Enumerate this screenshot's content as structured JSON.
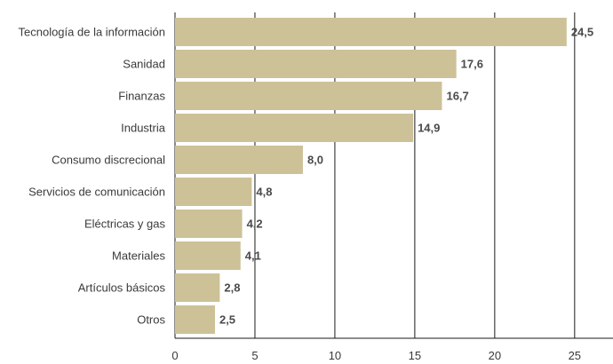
{
  "chart_data": {
    "type": "bar",
    "orientation": "horizontal",
    "categories": [
      "Tecnología de la información",
      "Sanidad",
      "Finanzas",
      "Industria",
      "Consumo discrecional",
      "Servicios de comunicación",
      "Eléctricas y gas",
      "Materiales",
      "Artículos básicos",
      "Otros"
    ],
    "values": [
      24.5,
      17.6,
      16.7,
      14.9,
      8.0,
      4.8,
      4.2,
      4.1,
      2.8,
      2.5
    ],
    "value_labels": [
      "24,5",
      "17,6",
      "16,7",
      "14,9",
      "8,0",
      "4,8",
      "4,2",
      "4,1",
      "2,8",
      "2,5"
    ],
    "x_ticks": [
      0,
      5,
      10,
      15,
      20,
      25
    ],
    "x_tick_labels": [
      "0",
      "5",
      "10",
      "15",
      "20",
      "25"
    ],
    "xlim": [
      0,
      27.4
    ],
    "grid": "vertical",
    "bar_color": "#cdc198",
    "grid_color": "#1a1a1a",
    "title": "",
    "xlabel": "",
    "ylabel": ""
  }
}
